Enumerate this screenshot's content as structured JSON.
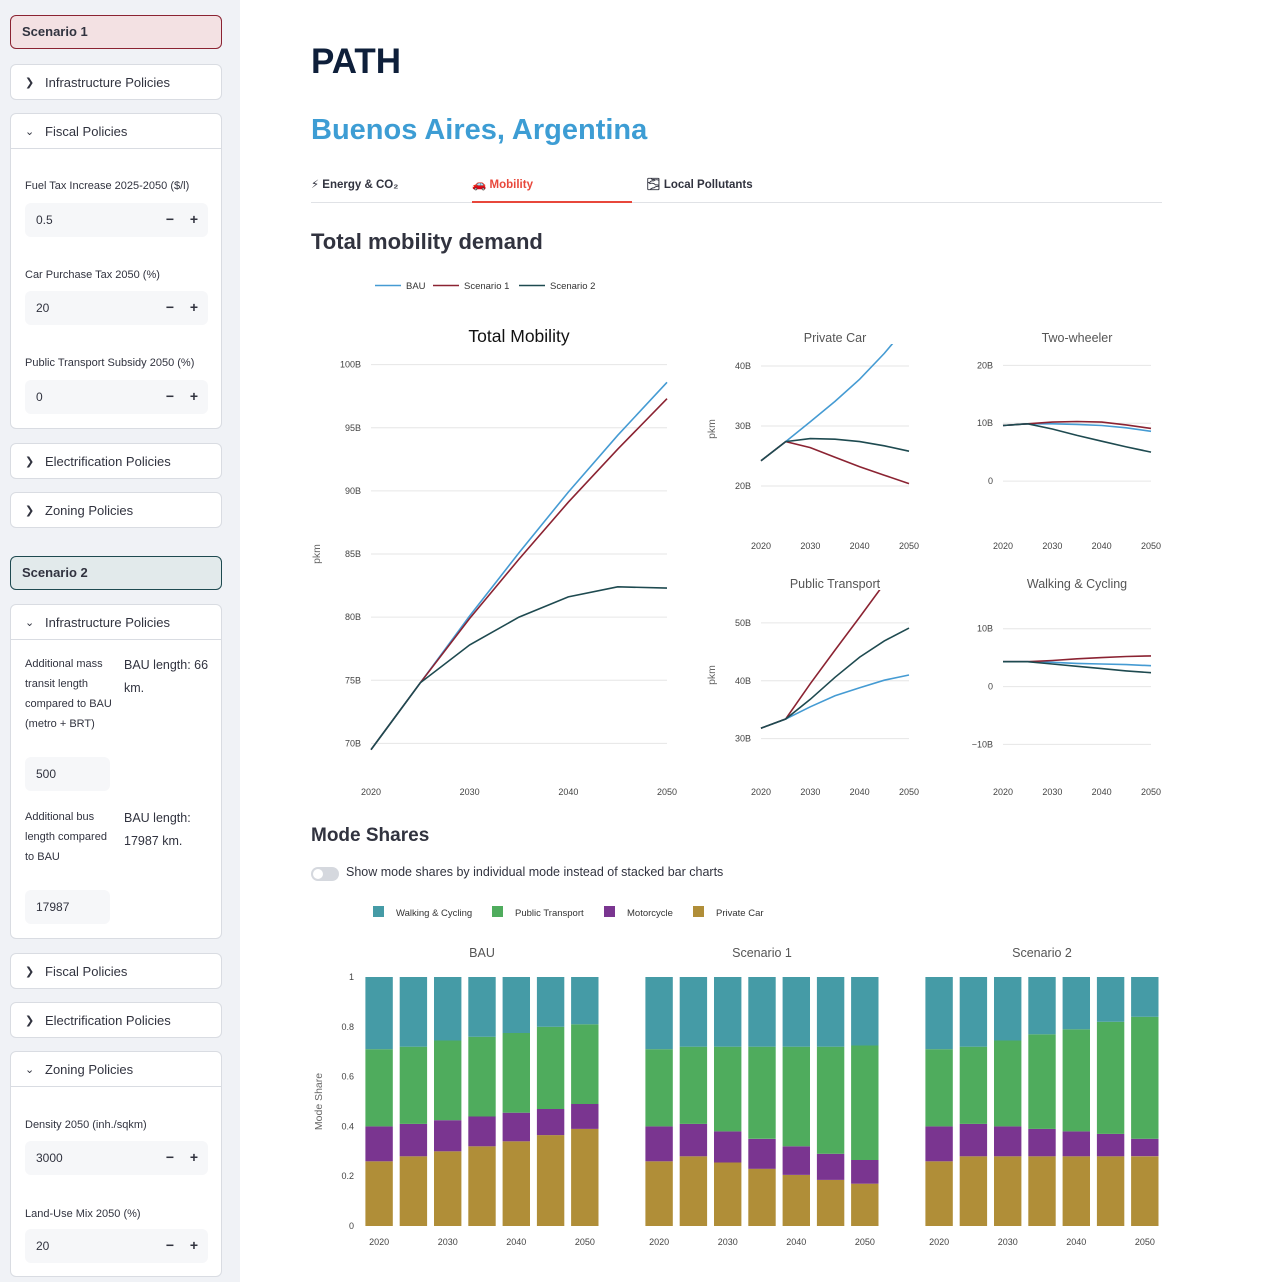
{
  "sidebar": {
    "scenario1": {
      "title": "Scenario 1",
      "infrastructure": "Infrastructure Policies",
      "fiscal": {
        "title": "Fiscal Policies",
        "fuel_tax_label": "Fuel Tax Increase 2025-2050 ($/l)",
        "fuel_tax_value": "0.5",
        "car_tax_label": "Car Purchase Tax 2050 (%)",
        "car_tax_value": "20",
        "pt_subsidy_label": "Public Transport Subsidy 2050 (%)",
        "pt_subsidy_value": "0"
      },
      "electrification": "Electrification Policies",
      "zoning": "Zoning Policies"
    },
    "scenario2": {
      "title": "Scenario 2",
      "infrastructure": {
        "title": "Infrastructure Policies",
        "mass_transit_label": "Additional mass transit length compared to BAU (metro + BRT)",
        "mass_transit_bau": "BAU length: 66 km.",
        "mass_transit_value": "500",
        "bus_label": "Additional bus length compared to BAU",
        "bus_bau": "BAU length: 17987 km.",
        "bus_value": "17987"
      },
      "fiscal": "Fiscal Policies",
      "electrification": "Electrification Policies",
      "zoning": {
        "title": "Zoning Policies",
        "density_label": "Density 2050 (inh./sqkm)",
        "density_value": "3000",
        "landuse_label": "Land-Use Mix 2050 (%)",
        "landuse_value": "20"
      }
    },
    "icons": {
      "collapsed": "chevron-right-icon",
      "expanded": "chevron-down-icon",
      "minus": "minus-icon",
      "plus": "plus-icon"
    }
  },
  "main": {
    "title": "PATH",
    "city": "Buenos Aires, Argentina",
    "tabs": [
      {
        "icon": "⚡",
        "label": "Energy & CO₂"
      },
      {
        "icon": "🚗",
        "label": "Mobility",
        "active": true
      },
      {
        "icon": "🌫",
        "label": "Local Pollutants"
      }
    ],
    "section1": "Total mobility demand",
    "section2": "Mode Shares",
    "toggle_label": "Show mode shares by individual mode instead of stacked bar charts"
  },
  "colors": {
    "BAU": "#459bd3",
    "Scenario 1": "#8b2332",
    "Scenario 2": "#1e4a50",
    "walk": "#459ba6",
    "pt": "#4fac5d",
    "moto": "#7a3590",
    "car": "#b08e38",
    "accent": "#e8473b"
  },
  "chart_data": [
    {
      "type": "line",
      "title": "Total Mobility",
      "ylabel": "pkm",
      "x": [
        2020,
        2025,
        2030,
        2035,
        2040,
        2045,
        2050
      ],
      "xticks": [
        "2020",
        "2030",
        "2040",
        "2050"
      ],
      "ylim": [
        69,
        101
      ],
      "yticks": [
        {
          "v": 70,
          "label": "70B"
        },
        {
          "v": 75,
          "label": "75B"
        },
        {
          "v": 80,
          "label": "80B"
        },
        {
          "v": 85,
          "label": "85B"
        },
        {
          "v": 90,
          "label": "90B"
        },
        {
          "v": 95,
          "label": "95B"
        },
        {
          "v": 100,
          "label": "100B"
        }
      ],
      "legend": [
        "BAU",
        "Scenario 1",
        "Scenario 2"
      ],
      "series": [
        {
          "name": "BAU",
          "values": [
            69.5,
            74.8,
            80.1,
            85.1,
            89.9,
            94.4,
            98.6
          ]
        },
        {
          "name": "Scenario 1",
          "values": [
            69.5,
            74.8,
            79.9,
            84.6,
            89.1,
            93.3,
            97.3
          ]
        },
        {
          "name": "Scenario 2",
          "values": [
            69.5,
            74.8,
            77.8,
            80.0,
            81.6,
            82.4,
            82.3
          ]
        }
      ]
    },
    {
      "type": "line",
      "title": "Private Car",
      "ylabel": "pkm",
      "x": [
        2020,
        2025,
        2030,
        2035,
        2040,
        2045,
        2050
      ],
      "xticks": [
        "2020",
        "2030",
        "2040",
        "2050"
      ],
      "ylim": [
        16,
        43
      ],
      "yticks": [
        {
          "v": 20,
          "label": "20B"
        },
        {
          "v": 30,
          "label": "30B"
        },
        {
          "v": 40,
          "label": "40B"
        }
      ],
      "series": [
        {
          "name": "BAU",
          "values": [
            24.2,
            27.4,
            30.7,
            34.1,
            37.8,
            42.1,
            47
          ]
        },
        {
          "name": "Scenario 1",
          "values": [
            24.2,
            27.4,
            26.4,
            24.8,
            23.2,
            21.8,
            20.4
          ]
        },
        {
          "name": "Scenario 2",
          "values": [
            24.2,
            27.4,
            27.9,
            27.8,
            27.4,
            26.7,
            25.8
          ]
        }
      ]
    },
    {
      "type": "line",
      "title": "Two-wheeler",
      "x": [
        2020,
        2025,
        2030,
        2035,
        2040,
        2045,
        2050
      ],
      "xticks": [
        "2020",
        "2030",
        "2040",
        "2050"
      ],
      "ylim": [
        -5,
        23
      ],
      "yticks": [
        {
          "v": 0,
          "label": "0"
        },
        {
          "v": 10,
          "label": "10B"
        },
        {
          "v": 20,
          "label": "20B"
        }
      ],
      "series": [
        {
          "name": "BAU",
          "values": [
            9.6,
            9.9,
            9.9,
            9.8,
            9.6,
            9.2,
            8.6
          ]
        },
        {
          "name": "Scenario 1",
          "values": [
            9.6,
            9.9,
            10.2,
            10.3,
            10.2,
            9.7,
            9.1
          ]
        },
        {
          "name": "Scenario 2",
          "values": [
            9.6,
            9.9,
            9.0,
            7.9,
            6.9,
            5.9,
            5.0
          ]
        }
      ]
    },
    {
      "type": "line",
      "title": "Public Transport",
      "ylabel": "pkm",
      "x": [
        2020,
        2025,
        2030,
        2035,
        2040,
        2045,
        2050
      ],
      "xticks": [
        "2020",
        "2030",
        "2040",
        "2050"
      ],
      "ylim": [
        27,
        55
      ],
      "yticks": [
        {
          "v": 30,
          "label": "30B"
        },
        {
          "v": 40,
          "label": "40B"
        },
        {
          "v": 50,
          "label": "50B"
        }
      ],
      "series": [
        {
          "name": "BAU",
          "values": [
            31.8,
            33.4,
            35.5,
            37.4,
            38.8,
            40.1,
            41.0
          ]
        },
        {
          "name": "Scenario 1",
          "values": [
            31.8,
            33.4,
            39.5,
            45.3,
            51.0,
            56.8,
            62.3
          ]
        },
        {
          "name": "Scenario 2",
          "values": [
            31.8,
            33.4,
            36.8,
            40.6,
            44.1,
            46.9,
            49.1
          ]
        }
      ]
    },
    {
      "type": "line",
      "title": "Walking & Cycling",
      "x": [
        2020,
        2025,
        2030,
        2035,
        2040,
        2045,
        2050
      ],
      "xticks": [
        "2020",
        "2030",
        "2040",
        "2050"
      ],
      "ylim": [
        -12,
        16
      ],
      "yticks": [
        {
          "v": -10,
          "label": "−10B"
        },
        {
          "v": 0,
          "label": "0"
        },
        {
          "v": 10,
          "label": "10B"
        }
      ],
      "series": [
        {
          "name": "BAU",
          "values": [
            4.3,
            4.3,
            4.2,
            4.0,
            3.9,
            3.8,
            3.6
          ]
        },
        {
          "name": "Scenario 1",
          "values": [
            4.3,
            4.3,
            4.5,
            4.8,
            5.0,
            5.2,
            5.3
          ]
        },
        {
          "name": "Scenario 2",
          "values": [
            4.3,
            4.3,
            3.9,
            3.5,
            3.1,
            2.7,
            2.4
          ]
        }
      ]
    },
    {
      "type": "bar",
      "title": "BAU",
      "ylabel": "Mode Share",
      "stacked": true,
      "x": [
        2020,
        2025,
        2030,
        2035,
        2040,
        2045,
        2050
      ],
      "xticks": [
        "2020",
        "2030",
        "2040",
        "2050"
      ],
      "ylim": [
        0,
        1
      ],
      "yticks": [
        {
          "v": 0,
          "label": "0"
        },
        {
          "v": 0.2,
          "label": "0.2"
        },
        {
          "v": 0.4,
          "label": "0.4"
        },
        {
          "v": 0.6,
          "label": "0.6"
        },
        {
          "v": 0.8,
          "label": "0.8"
        },
        {
          "v": 1,
          "label": "1"
        }
      ],
      "legend": [
        "Walking & Cycling",
        "Public Transport",
        "Motorcycle",
        "Private Car"
      ],
      "series": [
        {
          "name": "Private Car",
          "values": [
            0.26,
            0.28,
            0.3,
            0.32,
            0.34,
            0.365,
            0.39
          ]
        },
        {
          "name": "Motorcycle",
          "values": [
            0.14,
            0.13,
            0.125,
            0.12,
            0.115,
            0.105,
            0.1
          ]
        },
        {
          "name": "Public Transport",
          "values": [
            0.31,
            0.31,
            0.32,
            0.32,
            0.32,
            0.33,
            0.32
          ]
        },
        {
          "name": "Walking & Cycling",
          "values": [
            0.29,
            0.28,
            0.255,
            0.24,
            0.225,
            0.2,
            0.19
          ]
        }
      ]
    },
    {
      "type": "bar",
      "title": "Scenario 1",
      "stacked": true,
      "x": [
        2020,
        2025,
        2030,
        2035,
        2040,
        2045,
        2050
      ],
      "xticks": [
        "2020",
        "2030",
        "2040",
        "2050"
      ],
      "ylim": [
        0,
        1
      ],
      "series": [
        {
          "name": "Private Car",
          "values": [
            0.26,
            0.28,
            0.255,
            0.23,
            0.205,
            0.185,
            0.17
          ]
        },
        {
          "name": "Motorcycle",
          "values": [
            0.14,
            0.13,
            0.125,
            0.12,
            0.115,
            0.105,
            0.095
          ]
        },
        {
          "name": "Public Transport",
          "values": [
            0.31,
            0.31,
            0.34,
            0.37,
            0.4,
            0.43,
            0.46
          ]
        },
        {
          "name": "Walking & Cycling",
          "values": [
            0.29,
            0.28,
            0.28,
            0.28,
            0.28,
            0.28,
            0.275
          ]
        }
      ]
    },
    {
      "type": "bar",
      "title": "Scenario 2",
      "stacked": true,
      "x": [
        2020,
        2025,
        2030,
        2035,
        2040,
        2045,
        2050
      ],
      "xticks": [
        "2020",
        "2030",
        "2040",
        "2050"
      ],
      "ylim": [
        0,
        1
      ],
      "series": [
        {
          "name": "Private Car",
          "values": [
            0.26,
            0.28,
            0.28,
            0.28,
            0.28,
            0.28,
            0.28
          ]
        },
        {
          "name": "Motorcycle",
          "values": [
            0.14,
            0.13,
            0.12,
            0.11,
            0.1,
            0.09,
            0.07
          ]
        },
        {
          "name": "Public Transport",
          "values": [
            0.31,
            0.31,
            0.345,
            0.38,
            0.41,
            0.45,
            0.49
          ]
        },
        {
          "name": "Walking & Cycling",
          "values": [
            0.29,
            0.28,
            0.255,
            0.23,
            0.21,
            0.18,
            0.16
          ]
        }
      ]
    }
  ]
}
